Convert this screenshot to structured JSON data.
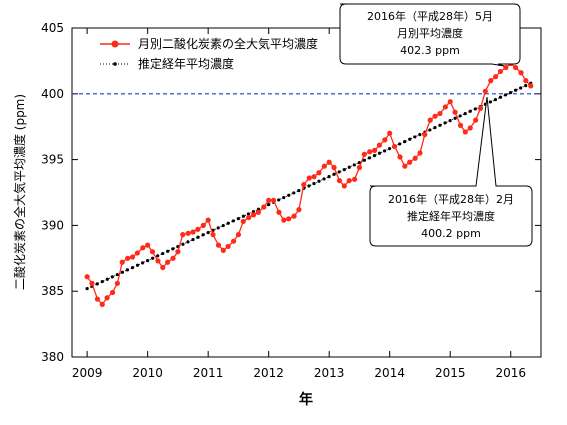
{
  "chart_data": {
    "type": "line",
    "xlabel": "年",
    "ylabel": "二酸化炭素の全大気平均濃度 (ppm)",
    "xlim": [
      2008.75,
      2016.5
    ],
    "ylim": [
      380,
      405
    ],
    "x_ticks": [
      "2009",
      "2010",
      "2011",
      "2012",
      "2013",
      "2014",
      "2015",
      "2016"
    ],
    "y_ticks": [
      "380",
      "385",
      "390",
      "395",
      "400",
      "405"
    ],
    "reference_line": {
      "y": 400,
      "color": "#1f3fbf",
      "style": "dashed"
    },
    "series": [
      {
        "name": "月別二酸化炭素の全大気平均濃度",
        "color": "#ff2a1a",
        "marker": "circle",
        "x": [
          2009.0,
          2009.08,
          2009.17,
          2009.25,
          2009.33,
          2009.42,
          2009.5,
          2009.58,
          2009.67,
          2009.75,
          2009.83,
          2009.92,
          2010.0,
          2010.08,
          2010.17,
          2010.25,
          2010.33,
          2010.42,
          2010.5,
          2010.58,
          2010.67,
          2010.75,
          2010.83,
          2010.92,
          2011.0,
          2011.08,
          2011.17,
          2011.25,
          2011.33,
          2011.42,
          2011.5,
          2011.58,
          2011.67,
          2011.75,
          2011.83,
          2011.92,
          2012.0,
          2012.08,
          2012.17,
          2012.25,
          2012.33,
          2012.42,
          2012.5,
          2012.58,
          2012.67,
          2012.75,
          2012.83,
          2012.92,
          2013.0,
          2013.08,
          2013.17,
          2013.25,
          2013.33,
          2013.42,
          2013.5,
          2013.58,
          2013.67,
          2013.75,
          2013.83,
          2013.92,
          2014.0,
          2014.08,
          2014.17,
          2014.25,
          2014.33,
          2014.42,
          2014.5,
          2014.58,
          2014.67,
          2014.75,
          2014.83,
          2014.92,
          2015.0,
          2015.08,
          2015.17,
          2015.25,
          2015.33,
          2015.42,
          2015.5,
          2015.58,
          2015.67,
          2015.75,
          2015.83,
          2015.92,
          2016.0,
          2016.08,
          2016.17,
          2016.25,
          2016.33
        ],
        "y": [
          386.1,
          385.6,
          384.4,
          384.0,
          384.5,
          384.9,
          385.6,
          387.2,
          387.5,
          387.6,
          387.9,
          388.3,
          388.5,
          388.0,
          387.3,
          386.8,
          387.2,
          387.5,
          388.0,
          389.3,
          389.4,
          389.5,
          389.7,
          390.0,
          390.4,
          389.3,
          388.5,
          388.1,
          388.4,
          388.8,
          389.3,
          390.3,
          390.6,
          390.8,
          391.0,
          391.4,
          391.9,
          391.9,
          391.0,
          390.4,
          390.5,
          390.7,
          391.2,
          393.1,
          393.6,
          393.7,
          394.0,
          394.5,
          394.8,
          394.4,
          393.4,
          393.0,
          393.4,
          393.5,
          394.4,
          395.4,
          395.6,
          395.7,
          396.1,
          396.5,
          397.0,
          396.0,
          395.2,
          394.5,
          394.8,
          395.1,
          395.5,
          396.9,
          398.0,
          398.3,
          398.5,
          399.0,
          399.4,
          398.6,
          397.6,
          397.1,
          397.4,
          398.0,
          398.9,
          400.2,
          401.0,
          401.3,
          401.7,
          402.0,
          402.3,
          402.0,
          401.6,
          401.0,
          400.6
        ]
      },
      {
        "name": "推定経年平均濃度",
        "color": "#000000",
        "marker": "dot",
        "x_start": 2009.0,
        "x_step": 0.0833,
        "y_start": 385.2,
        "y_end": 400.8
      }
    ],
    "annotations": [
      {
        "text": [
          "2016年（平成28年）5月",
          "月別平均濃度",
          "402.3 ppm"
        ],
        "x": 2016.0,
        "y": 402.3
      },
      {
        "text": [
          "2016年（平成28年）2月",
          "推定経年平均濃度",
          "400.2 ppm"
        ],
        "x": 2015.75,
        "y": 400.2
      }
    ]
  }
}
